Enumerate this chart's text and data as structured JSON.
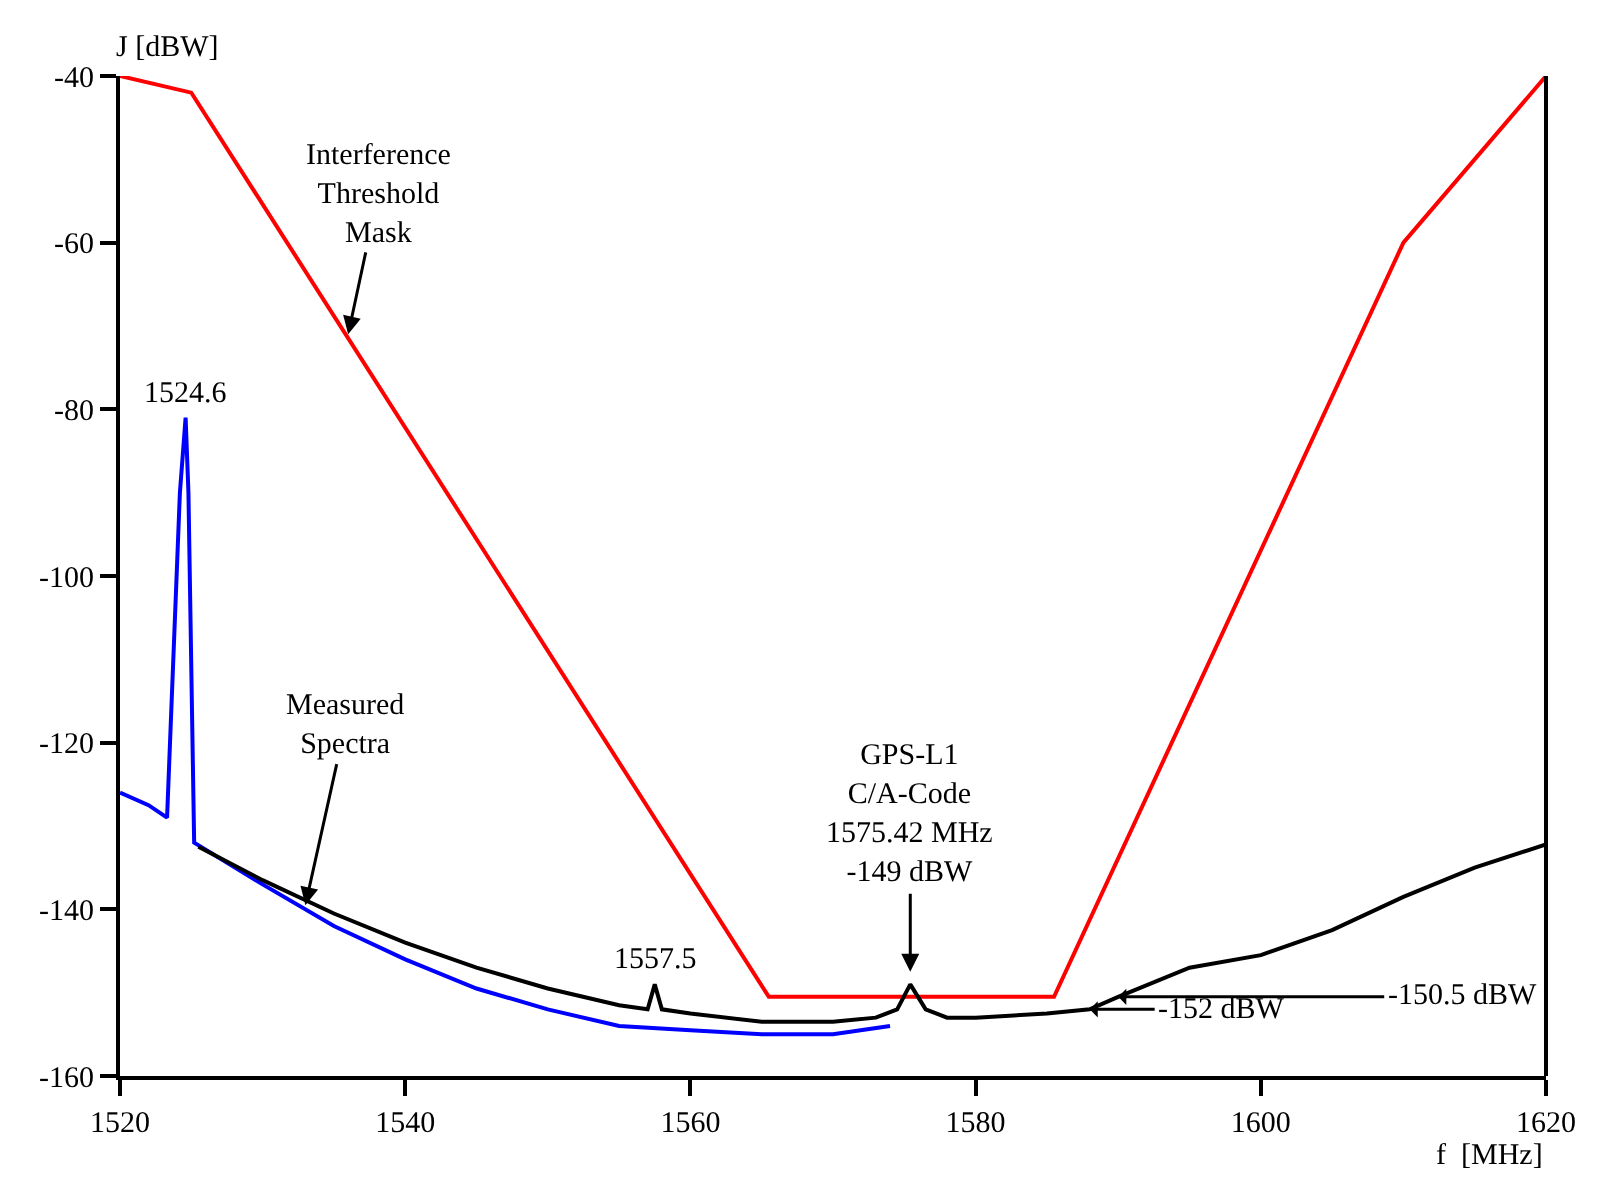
{
  "chart_data": {
    "type": "line",
    "xlabel": "f  [MHz]",
    "ylabel": "J [dBW]",
    "xlim": [
      1520,
      1620
    ],
    "xticks": [
      1520,
      1540,
      1560,
      1580,
      1600,
      1620
    ],
    "ylim": [
      -160,
      -40
    ],
    "yticks": [
      -160,
      -140,
      -120,
      -100,
      -80,
      -60,
      -40
    ],
    "marker": "none",
    "line_style": "solid",
    "series": [
      {
        "color": "#ff0000",
        "x": [
          1520,
          1525,
          1565.5,
          1585.5,
          1610,
          1620
        ],
        "values": [
          -40,
          -42,
          -150.5,
          -150.5,
          -60,
          -40
        ]
      },
      {
        "color": "#0000ff",
        "x": [
          1520,
          1522,
          1523.3,
          1524.2,
          1524.6,
          1524.8,
          1525.2,
          1530,
          1535,
          1540,
          1545,
          1550,
          1555,
          1560,
          1565,
          1570,
          1574
        ],
        "values": [
          -126,
          -127.5,
          -129,
          -90,
          -81,
          -90,
          -132,
          -137,
          -142,
          -146,
          -149.5,
          -152,
          -154,
          -154.5,
          -155,
          -155,
          -154
        ]
      },
      {
        "color": "#000000",
        "x": [
          1525.5,
          1530,
          1535,
          1540,
          1545,
          1550,
          1555,
          1557,
          1557.5,
          1558,
          1560,
          1565,
          1570,
          1573,
          1574.5,
          1575.42,
          1576.5,
          1578,
          1580,
          1585,
          1588,
          1590,
          1595,
          1600,
          1605,
          1610,
          1615,
          1620
        ],
        "values": [
          -132.5,
          -136.5,
          -140.5,
          -144,
          -147,
          -149.5,
          -151.5,
          -152,
          -149,
          -152,
          -152.5,
          -153.5,
          -153.5,
          -153,
          -152,
          -149,
          -152,
          -153,
          -153,
          -152.5,
          -152,
          -150.5,
          -147,
          -145.5,
          -142.5,
          -138.5,
          -135,
          -132.2
        ]
      }
    ],
    "annotations": [
      {
        "text": "Interference\nThreshold\nMask",
        "x": 1536,
        "y": -71
      },
      {
        "text": "1524.6",
        "x": 1524.6,
        "y": -81
      },
      {
        "text": "Measured\nSpectra",
        "x": 1533,
        "y": -139.5
      },
      {
        "text": "1557.5",
        "x": 1557.5,
        "y": -149
      },
      {
        "text": "GPS-L1\nC/A-Code\n1575.42 MHz\n-149 dBW",
        "x": 1575.42,
        "y": -147.5
      },
      {
        "text": "-150.5 dBW",
        "x": 1590,
        "y": -150.5
      },
      {
        "text": "-152 dBW",
        "x": 1588,
        "y": -152
      }
    ]
  }
}
